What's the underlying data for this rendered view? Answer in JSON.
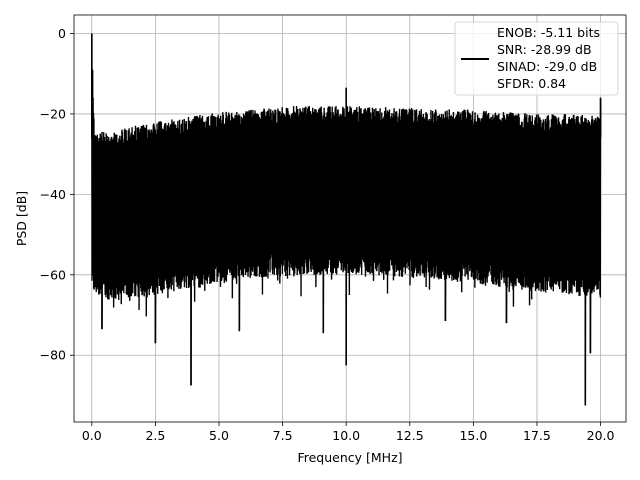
{
  "chart_data": {
    "type": "line",
    "xlabel": "Frequency [MHz]",
    "ylabel": "PSD [dB]",
    "xlim": [
      -0.7,
      21.0
    ],
    "ylim": [
      -96.6,
      4.6
    ],
    "xticks": [
      0.0,
      2.5,
      5.0,
      7.5,
      10.0,
      12.5,
      15.0,
      17.5,
      20.0
    ],
    "xtick_labels": [
      "0.0",
      "2.5",
      "5.0",
      "7.5",
      "10.0",
      "12.5",
      "15.0",
      "17.5",
      "20.0"
    ],
    "yticks": [
      0,
      -20,
      -40,
      -60,
      -80
    ],
    "ytick_labels": [
      "0",
      "−20",
      "−40",
      "−60",
      "−80"
    ],
    "grid": true,
    "legend_position": "top-right",
    "color": "#000000",
    "series": [
      {
        "name": "ENOB: -5.11 bits\nSNR: -28.99 dB\nSINAD: -29.0 dB\nSFDR: 0.84",
        "legend_lines": [
          "ENOB: -5.11 bits",
          "SNR: -28.99 dB",
          "SINAD: -29.0 dB",
          "SFDR: 0.84"
        ],
        "x_range": [
          0.0,
          20.0
        ],
        "upper_envelope": {
          "x": [
            0.0,
            0.1,
            0.5,
            1.0,
            2.0,
            3.0,
            4.0,
            5.0,
            6.0,
            7.0,
            8.0,
            9.0,
            10.0,
            11.0,
            12.0,
            13.0,
            14.0,
            15.0,
            16.0,
            17.0,
            18.0,
            19.0,
            20.0
          ],
          "y": [
            -0.5,
            -24.0,
            -24.5,
            -24.0,
            -22.5,
            -21.5,
            -20.5,
            -19.5,
            -19.0,
            -18.5,
            -18.0,
            -18.0,
            -18.0,
            -18.0,
            -18.5,
            -18.5,
            -18.5,
            -19.0,
            -19.5,
            -19.5,
            -20.0,
            -20.0,
            -20.5
          ]
        },
        "lower_envelope": {
          "x": [
            0.0,
            0.1,
            0.5,
            1.0,
            2.0,
            3.0,
            4.0,
            5.0,
            6.0,
            7.0,
            8.0,
            9.0,
            10.0,
            11.0,
            12.0,
            13.0,
            14.0,
            15.0,
            16.0,
            17.0,
            18.0,
            19.0,
            20.0
          ],
          "y": [
            -63.0,
            -65.0,
            -66.0,
            -66.5,
            -65.5,
            -64.5,
            -63.0,
            -62.0,
            -61.0,
            -60.5,
            -60.5,
            -60.0,
            -60.0,
            -60.0,
            -60.5,
            -61.0,
            -61.5,
            -62.0,
            -63.0,
            -64.0,
            -64.5,
            -65.0,
            -66.0
          ]
        },
        "peaks": [
          {
            "x": 0.0,
            "y": 0.0
          },
          {
            "x": 10.0,
            "y": -13.5
          },
          {
            "x": 20.0,
            "y": -16.0
          }
        ],
        "dips": [
          {
            "x": 0.4,
            "y": -73.5
          },
          {
            "x": 2.5,
            "y": -77.0
          },
          {
            "x": 3.9,
            "y": -87.5
          },
          {
            "x": 5.8,
            "y": -74.0
          },
          {
            "x": 9.1,
            "y": -74.5
          },
          {
            "x": 10.0,
            "y": -82.5
          },
          {
            "x": 13.9,
            "y": -71.5
          },
          {
            "x": 16.3,
            "y": -72.0
          },
          {
            "x": 19.4,
            "y": -92.5
          },
          {
            "x": 19.6,
            "y": -79.5
          }
        ]
      }
    ]
  }
}
